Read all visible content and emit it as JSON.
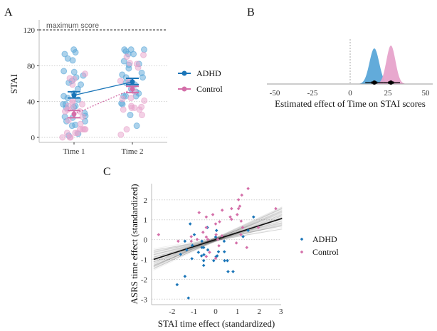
{
  "colors": {
    "adhd": "#1a75b8",
    "adhd_point": "#5aa6d8",
    "control": "#d46fa9",
    "control_point": "#e7a3cb",
    "grid": "#cfcfcf",
    "fit": "#111111"
  },
  "chart_data": [
    {
      "panel": "A",
      "type": "scatter",
      "ylabel": "STAI",
      "xlabel": "",
      "categories": [
        "Time 1",
        "Time 2"
      ],
      "ylim": [
        -5,
        130
      ],
      "yticks": [
        0,
        40,
        80,
        120
      ],
      "grid": "horizontal dotted",
      "reference_line": {
        "y": 120,
        "label": "maximum score",
        "style": "dashed"
      },
      "legend": {
        "placement": "right"
      },
      "series": [
        {
          "name": "ADHD",
          "color_key": "adhd",
          "means": [
            47,
            62
          ],
          "se_low": [
            44,
            59
          ],
          "se_high": [
            51,
            66
          ],
          "line": "solid",
          "points": {
            "Time 1": [
              98,
              95,
              93,
              88,
              86,
              73,
              74,
              69,
              67,
              63,
              61,
              59,
              54,
              46,
              49,
              44,
              42,
              37,
              35,
              34,
              33,
              37,
              27,
              24,
              23,
              22,
              18,
              18,
              13,
              14,
              4,
              2
            ],
            "Time 2": [
              98,
              98,
              98,
              96,
              93,
              93,
              85,
              82,
              81,
              77,
              70,
              67,
              67,
              72,
              62,
              61,
              59,
              61,
              49,
              46,
              46,
              46,
              54,
              37,
              38,
              25,
              13,
              51
            ]
          }
        },
        {
          "name": "Control",
          "color_key": "control",
          "means": [
            26,
            54
          ],
          "se_low": [
            22,
            50
          ],
          "se_high": [
            30,
            57
          ],
          "line": "dotted",
          "points": {
            "Time 1": [
              71,
              66,
              59,
              65,
              39,
              37,
              41,
              33,
              35,
              31,
              29,
              29,
              19,
              15,
              23,
              9,
              9,
              9,
              9,
              5,
              5,
              0,
              0,
              0,
              5
            ],
            "Time 2": [
              83,
              82,
              78,
              90,
              92,
              63,
              62,
              51,
              44,
              43,
              41,
              35,
              34,
              33,
              33,
              31,
              31,
              25,
              9,
              3
            ]
          }
        }
      ]
    },
    {
      "panel": "B",
      "type": "area",
      "xlabel": "Estimated effect of Time on STAI scores",
      "xlim": [
        -55,
        52
      ],
      "xticks": [
        -50,
        -25,
        0,
        25,
        50
      ],
      "reference_line": {
        "x": 0,
        "style": "dashed"
      },
      "series": [
        {
          "name": "ADHD",
          "color_key": "adhd_point",
          "mean": 16,
          "sd": 3.2,
          "interval": [
            10,
            22
          ],
          "inner_interval": [
            14,
            18
          ]
        },
        {
          "name": "Control",
          "color_key": "control_point",
          "mean": 27,
          "sd": 3.0,
          "interval": [
            22,
            33
          ],
          "inner_interval": [
            25,
            29
          ]
        }
      ]
    },
    {
      "panel": "C",
      "type": "scatter",
      "xlabel": "STAI time effect (standardized)",
      "ylabel": "ASRS time effect (standardized)",
      "xlim": [
        -2.95,
        3.05
      ],
      "ylim": [
        -3.2,
        2.8
      ],
      "xticks": [
        -2,
        -1,
        0,
        1,
        2,
        3
      ],
      "yticks": [
        -3,
        -2,
        -1,
        0,
        1,
        2
      ],
      "grid": "horizontal dotted",
      "legend": {
        "placement": "right"
      },
      "fit": {
        "intercept": 0.0,
        "slope": 0.35,
        "band": "posterior draws"
      },
      "series": [
        {
          "name": "ADHD",
          "color_key": "adhd",
          "points": [
            [
              -1.17,
              0.79
            ],
            [
              -1.41,
              -0.08
            ],
            [
              -0.98,
              0.25
            ],
            [
              -1.61,
              -0.74
            ],
            [
              -1.07,
              -0.29
            ],
            [
              -1.33,
              -0.52
            ],
            [
              -1.09,
              -0.96
            ],
            [
              -1.41,
              -1.85
            ],
            [
              -1.77,
              -2.27
            ],
            [
              -1.25,
              -2.94
            ],
            [
              -0.79,
              -0.64
            ],
            [
              -0.63,
              -0.4
            ],
            [
              -0.63,
              -0.08
            ],
            [
              -0.55,
              -0.4
            ],
            [
              -0.65,
              -0.82
            ],
            [
              -0.54,
              -0.76
            ],
            [
              -0.55,
              -1.06
            ],
            [
              -0.55,
              -1.3
            ],
            [
              -0.36,
              -0.52
            ],
            [
              -0.38,
              0.61
            ],
            [
              0,
              0.13
            ],
            [
              0.04,
              0.46
            ],
            [
              0.07,
              -0.82
            ],
            [
              0.02,
              -0.86
            ],
            [
              -0.09,
              -1.06
            ],
            [
              0.13,
              -0.61
            ],
            [
              0.39,
              -0.08
            ],
            [
              0.4,
              -0.61
            ],
            [
              0.41,
              -1.06
            ],
            [
              0.54,
              -1.06
            ],
            [
              0.57,
              -1.61
            ],
            [
              0.8,
              -1.61
            ],
            [
              1.26,
              0.15
            ],
            [
              1.74,
              1.14
            ],
            [
              1.49,
              0.46
            ]
          ]
        },
        {
          "name": "Control",
          "color_key": "control",
          "points": [
            [
              -2.62,
              0.25
            ],
            [
              -1.72,
              -0.08
            ],
            [
              -1.12,
              -0.08
            ],
            [
              -1.12,
              0.15
            ],
            [
              -0.85,
              0.01
            ],
            [
              -0.76,
              1.36
            ],
            [
              -0.43,
              1.14
            ],
            [
              -0.43,
              0.61
            ],
            [
              -0.43,
              0.13
            ],
            [
              -0.36,
              0.01
            ],
            [
              -0.43,
              -0.85
            ],
            [
              -0.28,
              -0.64
            ],
            [
              -0.13,
              1.26
            ],
            [
              0,
              0.79
            ],
            [
              0.02,
              0.25
            ],
            [
              0.18,
              0.9
            ],
            [
              0.15,
              -0.31
            ],
            [
              0.29,
              0.19
            ],
            [
              0.3,
              1.48
            ],
            [
              0,
              -0.94
            ],
            [
              0.1,
              0.01
            ],
            [
              0.73,
              1.56
            ],
            [
              0.67,
              1.14
            ],
            [
              0.73,
              1.02
            ],
            [
              0.99,
              1.26
            ],
            [
              1.05,
              2.01
            ],
            [
              1.05,
              1.56
            ],
            [
              1.11,
              1.68
            ],
            [
              1.2,
              2.24
            ],
            [
              1.49,
              2.57
            ],
            [
              1.17,
              0.93
            ],
            [
              1.24,
              0.61
            ],
            [
              1.16,
              0.25
            ],
            [
              0.95,
              -0.17
            ],
            [
              1.43,
              -0.4
            ],
            [
              1.96,
              0.61
            ],
            [
              2.76,
              1.56
            ],
            [
              -0.58,
              0.37
            ]
          ]
        }
      ]
    }
  ]
}
